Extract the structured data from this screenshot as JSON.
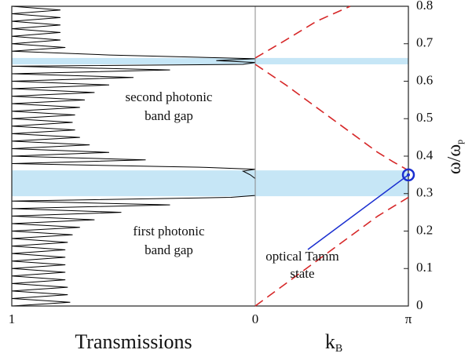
{
  "chart_data": [
    {
      "type": "line",
      "xlabel": "Transmissions",
      "xlim": [
        1,
        0
      ],
      "xticks": [
        1
      ],
      "ylim": [
        0,
        0.8
      ],
      "color": "#000000",
      "omega": [
        0.0,
        0.01,
        0.02,
        0.03,
        0.04,
        0.05,
        0.06,
        0.07,
        0.08,
        0.09,
        0.1,
        0.11,
        0.12,
        0.13,
        0.14,
        0.15,
        0.16,
        0.17,
        0.18,
        0.19,
        0.2,
        0.21,
        0.22,
        0.23,
        0.24,
        0.25,
        0.26,
        0.27,
        0.28,
        0.29,
        0.295,
        0.34,
        0.35,
        0.36,
        0.365,
        0.37,
        0.38,
        0.39,
        0.4,
        0.41,
        0.42,
        0.43,
        0.44,
        0.45,
        0.46,
        0.47,
        0.48,
        0.49,
        0.5,
        0.51,
        0.52,
        0.53,
        0.54,
        0.55,
        0.56,
        0.57,
        0.58,
        0.59,
        0.6,
        0.61,
        0.62,
        0.63,
        0.64,
        0.645,
        0.65,
        0.655,
        0.66,
        0.67,
        0.68,
        0.69,
        0.7,
        0.71,
        0.72,
        0.73,
        0.74,
        0.75,
        0.76,
        0.77,
        0.78,
        0.79,
        0.8
      ],
      "values": [
        1,
        0.76,
        1,
        0.77,
        1,
        0.77,
        1,
        0.78,
        1,
        0.78,
        1,
        0.78,
        1,
        0.78,
        1,
        0.78,
        1,
        0.77,
        1,
        0.75,
        1,
        0.72,
        1,
        0.66,
        1,
        0.55,
        1,
        0.35,
        1,
        0.1,
        0,
        0,
        0.02,
        0.05,
        0,
        0.2,
        1,
        0.45,
        1,
        0.6,
        1,
        0.68,
        1,
        0.72,
        1,
        0.74,
        1,
        0.75,
        1,
        0.74,
        1,
        0.72,
        1,
        0.7,
        1,
        0.66,
        1,
        0.6,
        1,
        0.5,
        1,
        0.35,
        1,
        0.05,
        0,
        0.16,
        0,
        0.6,
        1,
        0.78,
        1,
        0.8,
        1,
        0.8,
        1,
        0.8,
        1,
        0.8,
        1,
        0.8,
        1
      ],
      "annotations": [
        [
          "second photonic",
          "band gap"
        ],
        [
          "first photonic",
          "band gap"
        ]
      ]
    },
    {
      "type": "line",
      "xlabel": [
        "k",
        "B"
      ],
      "ylabel": [
        "ω/ω",
        "p"
      ],
      "xlim": [
        0,
        1
      ],
      "xticks": [
        0,
        {
          "value": 1,
          "label": "π"
        }
      ],
      "ylim": [
        0,
        0.8
      ],
      "yticks": [
        0,
        0.1,
        0.2,
        0.3,
        0.4,
        0.5,
        0.6,
        0.7,
        0.8
      ],
      "gaps": [
        [
          0.293,
          0.362
        ],
        [
          0.645,
          0.662
        ]
      ],
      "gap_color": "#c6e6f6",
      "series": [
        {
          "color": "#d62728",
          "x": [
            0,
            0.2,
            0.4,
            0.6,
            0.8,
            0.9,
            1
          ],
          "values": [
            0,
            0.06,
            0.12,
            0.18,
            0.24,
            0.265,
            0.29
          ]
        },
        {
          "color": "#d62728",
          "x": [
            0,
            0.2,
            0.4,
            0.6,
            0.8,
            0.9,
            1
          ],
          "values": [
            0.645,
            0.59,
            0.53,
            0.47,
            0.41,
            0.385,
            0.362
          ]
        },
        {
          "color": "#d62728",
          "x": [
            0,
            0.2,
            0.4,
            0.62
          ],
          "values": [
            0.662,
            0.71,
            0.76,
            0.8
          ]
        }
      ],
      "marker": {
        "x": 1,
        "y": 0.35,
        "color": "#1a2fd0"
      },
      "annotation": [
        "optical Tamm",
        "state"
      ]
    }
  ]
}
